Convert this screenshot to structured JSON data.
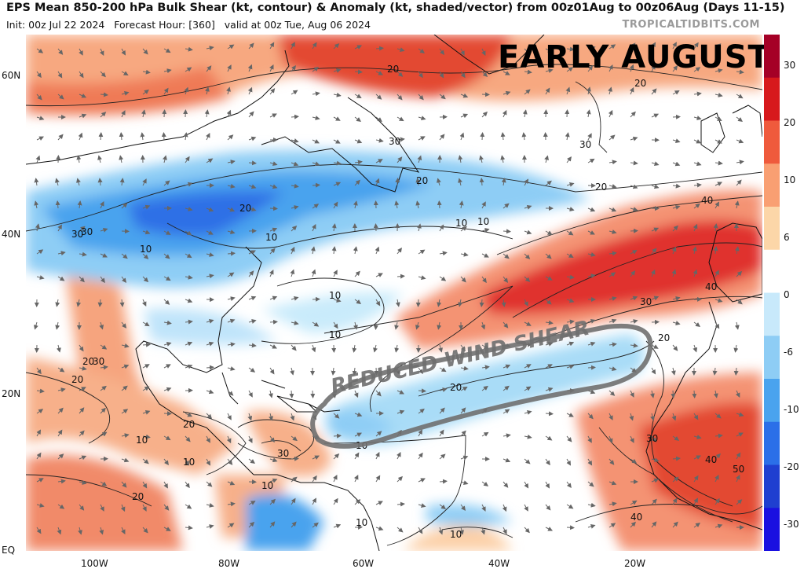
{
  "header": {
    "title": "EPS Mean 850-200 hPa Bulk Shear (kt, contour) & Anomaly (kt, shaded/vector) from 00z01Aug to 00z06Aug (Days 11-15)",
    "init": "Init: 00z Jul 22 2024",
    "forecast_hour": "Forecast Hour: [360]",
    "valid": "valid at 00z Tue, Aug 06 2024",
    "brand": "TROPICALTIDBITS.COM"
  },
  "overlay": {
    "headline": "EARLY AUGUST",
    "annotation": "REDUCED WIND SHEAR"
  },
  "axes": {
    "lat_labels": [
      "60N",
      "40N",
      "20N",
      "EQ"
    ],
    "lon_labels": [
      "100W",
      "80W",
      "60W",
      "40W",
      "20W"
    ]
  },
  "colorbar": {
    "labels": [
      "30",
      "20",
      "10",
      "6",
      "0",
      "-6",
      "-10",
      "-20",
      "-30"
    ],
    "colors": [
      "#a50026",
      "#d7191c",
      "#ef5a3c",
      "#f99f72",
      "#fcd6a8",
      "#ffffff",
      "#c8e9fb",
      "#8ecdf5",
      "#4aa3ee",
      "#2b6fe8",
      "#1f3fd0",
      "#1a10e0"
    ]
  },
  "contour_labels": [
    "30",
    "20",
    "30",
    "20",
    "30",
    "20",
    "20",
    "10",
    "20",
    "30",
    "10",
    "40",
    "10",
    "10",
    "40",
    "30",
    "20",
    "10",
    "20",
    "10",
    "20",
    "30",
    "20",
    "30",
    "10",
    "10",
    "20",
    "10",
    "10",
    "10",
    "30",
    "40",
    "50",
    "40",
    "10",
    "20"
  ]
}
